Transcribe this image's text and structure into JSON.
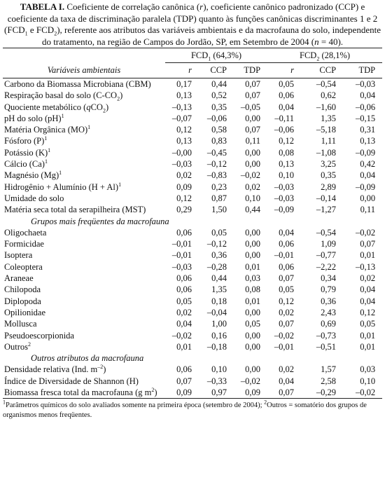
{
  "caption": [
    "TABELA I.",
    " Coeficiente de correlação canônica (",
    "r",
    "), coeficiente canônico padronizado (CCP) e coeficiente da taxa de discriminação paralela (TDP) quanto às funções canônicas discriminantes 1 e 2 (FCD",
    "1",
    " e FCD",
    "2",
    "), referente aos atributos das variáveis ambientais e da macrofauna do solo, independente do tratamento, na região de Campos do Jordão, SP, em Setembro de 2004 (",
    "n",
    " = 40)."
  ],
  "table": {
    "groups": [
      [
        "FCD",
        "1",
        " (64,3%)"
      ],
      [
        "FCD",
        "2",
        " (28,1%)"
      ]
    ],
    "columns": [
      "Variáveis ambientais",
      "r",
      "CCP",
      "TDP",
      "r",
      "CCP",
      "TDP"
    ],
    "rows": [
      {
        "label": [
          "Carbono da Biomassa Microbiana (CBM)"
        ],
        "values": [
          "0,17",
          "0,44",
          "0,07",
          "0,05",
          "–0,54",
          "–0,03"
        ]
      },
      {
        "label": [
          "Respiração basal do solo (C-CO",
          "2",
          ")"
        ],
        "values": [
          "0,13",
          "0,52",
          "0,07",
          "0,06",
          "0,62",
          "0,04"
        ]
      },
      {
        "label": [
          "Quociente metabólico (",
          "q",
          "CO",
          "2",
          ")"
        ],
        "values": [
          "–0,13",
          "0,35",
          "–0,05",
          "0,04",
          "–1,60",
          "–0,06"
        ]
      },
      {
        "label": [
          "pH do solo (pH)",
          "1"
        ],
        "values": [
          "–0,07",
          "–0,06",
          "0,00",
          "–0,11",
          "1,35",
          "–0,15"
        ]
      },
      {
        "label": [
          "Matéria Orgânica (MO)",
          "1"
        ],
        "values": [
          "0,12",
          "0,58",
          "0,07",
          "–0,06",
          "–5,18",
          "0,31"
        ]
      },
      {
        "label": [
          "Fósforo (P)",
          "1"
        ],
        "values": [
          "0,13",
          "0,83",
          "0,11",
          "0,12",
          "1,11",
          "0,13"
        ]
      },
      {
        "label": [
          "Potássio (K)",
          "1"
        ],
        "values": [
          "–0,00",
          "–0,45",
          "0,00",
          "0,08",
          "–1,08",
          "–0,09"
        ]
      },
      {
        "label": [
          "Cálcio (Ca)",
          "1"
        ],
        "values": [
          "–0,03",
          "–0,12",
          "0,00",
          "0,13",
          "3,25",
          "0,42"
        ]
      },
      {
        "label": [
          "Magnésio (Mg)",
          "1"
        ],
        "values": [
          "0,02",
          "–0,83",
          "–0,02",
          "0,10",
          "0,35",
          "0,04"
        ]
      },
      {
        "label": [
          "Hidrogênio + Alumínio (H + Al)",
          "1"
        ],
        "values": [
          "0,09",
          "0,23",
          "0,02",
          "–0,03",
          "2,89",
          "–0,09"
        ]
      },
      {
        "label": [
          "Umidade do solo"
        ],
        "values": [
          "0,12",
          "0,87",
          "0,10",
          "–0,03",
          "–0,14",
          "0,00"
        ]
      },
      {
        "label": [
          "Matéria seca total da serapilheira (MST)"
        ],
        "values": [
          "0,29",
          "1,50",
          "0,44",
          "–0,09",
          "–1,27",
          "0,11"
        ]
      },
      {
        "section": "Grupos mais freqüentes da macrofauna"
      },
      {
        "label": [
          "Oligochaeta"
        ],
        "values": [
          "0,06",
          "0,05",
          "0,00",
          "0,04",
          "–0,54",
          "–0,02"
        ]
      },
      {
        "label": [
          "Formicidae"
        ],
        "values": [
          "–0,01",
          "–0,12",
          "0,00",
          "0,06",
          "1,09",
          "0,07"
        ]
      },
      {
        "label": [
          "Isoptera"
        ],
        "values": [
          "–0,01",
          "0,36",
          "0,00",
          "–0,01",
          "–0,77",
          "0,01"
        ]
      },
      {
        "label": [
          "Coleoptera"
        ],
        "values": [
          "–0,03",
          "–0,28",
          "0,01",
          "0,06",
          "–2,22",
          "–0,13"
        ]
      },
      {
        "label": [
          "Araneae"
        ],
        "values": [
          "0,06",
          "0,44",
          "0,03",
          "0,07",
          "0,34",
          "0,02"
        ]
      },
      {
        "label": [
          "Chilopoda"
        ],
        "values": [
          "0,06",
          "1,35",
          "0,08",
          "0,05",
          "0,79",
          "0,04"
        ]
      },
      {
        "label": [
          "Diplopoda"
        ],
        "values": [
          "0,05",
          "0,18",
          "0,01",
          "0,12",
          "0,36",
          "0,04"
        ]
      },
      {
        "label": [
          "Opilionidae"
        ],
        "values": [
          "0,02",
          "–0,04",
          "0,00",
          "0,02",
          "2,43",
          "0,12"
        ]
      },
      {
        "label": [
          "Mollusca"
        ],
        "values": [
          "0,04",
          "1,00",
          "0,05",
          "0,07",
          "0,69",
          "0,05"
        ]
      },
      {
        "label": [
          "Pseudoescorpionida"
        ],
        "values": [
          "–0,02",
          "0,16",
          "0,00",
          "–0,02",
          "–0,73",
          "0,01"
        ]
      },
      {
        "label": [
          "Outros",
          "2"
        ],
        "values": [
          "0,01",
          "–0,18",
          "0,00",
          "–0,01",
          "–0,51",
          "0,01"
        ]
      },
      {
        "section": "Outros atributos da macrofauna"
      },
      {
        "label": [
          "Densidade relativa (Ind. m",
          "–2",
          ")"
        ],
        "values": [
          "0,06",
          "0,10",
          "0,00",
          "0,02",
          "1,57",
          "0,03"
        ]
      },
      {
        "label": [
          "Índice de Diversidade de Shannon (H)"
        ],
        "values": [
          "0,07",
          "–0,33",
          "–0,02",
          "0,04",
          "2,58",
          "0,10"
        ]
      },
      {
        "label": [
          "Biomassa fresca total da macrofauna (g m",
          "2",
          ")"
        ],
        "values": [
          "0,09",
          "0,97",
          "0,09",
          "0,07",
          "–0,29",
          "–0,02"
        ]
      }
    ]
  },
  "footnote": [
    "1",
    "Parâmetros químicos do solo avaliados somente na primeira época (setembro de 2004); ",
    "2",
    "Outros = somatório dos grupos de organismos menos freqüentes."
  ]
}
